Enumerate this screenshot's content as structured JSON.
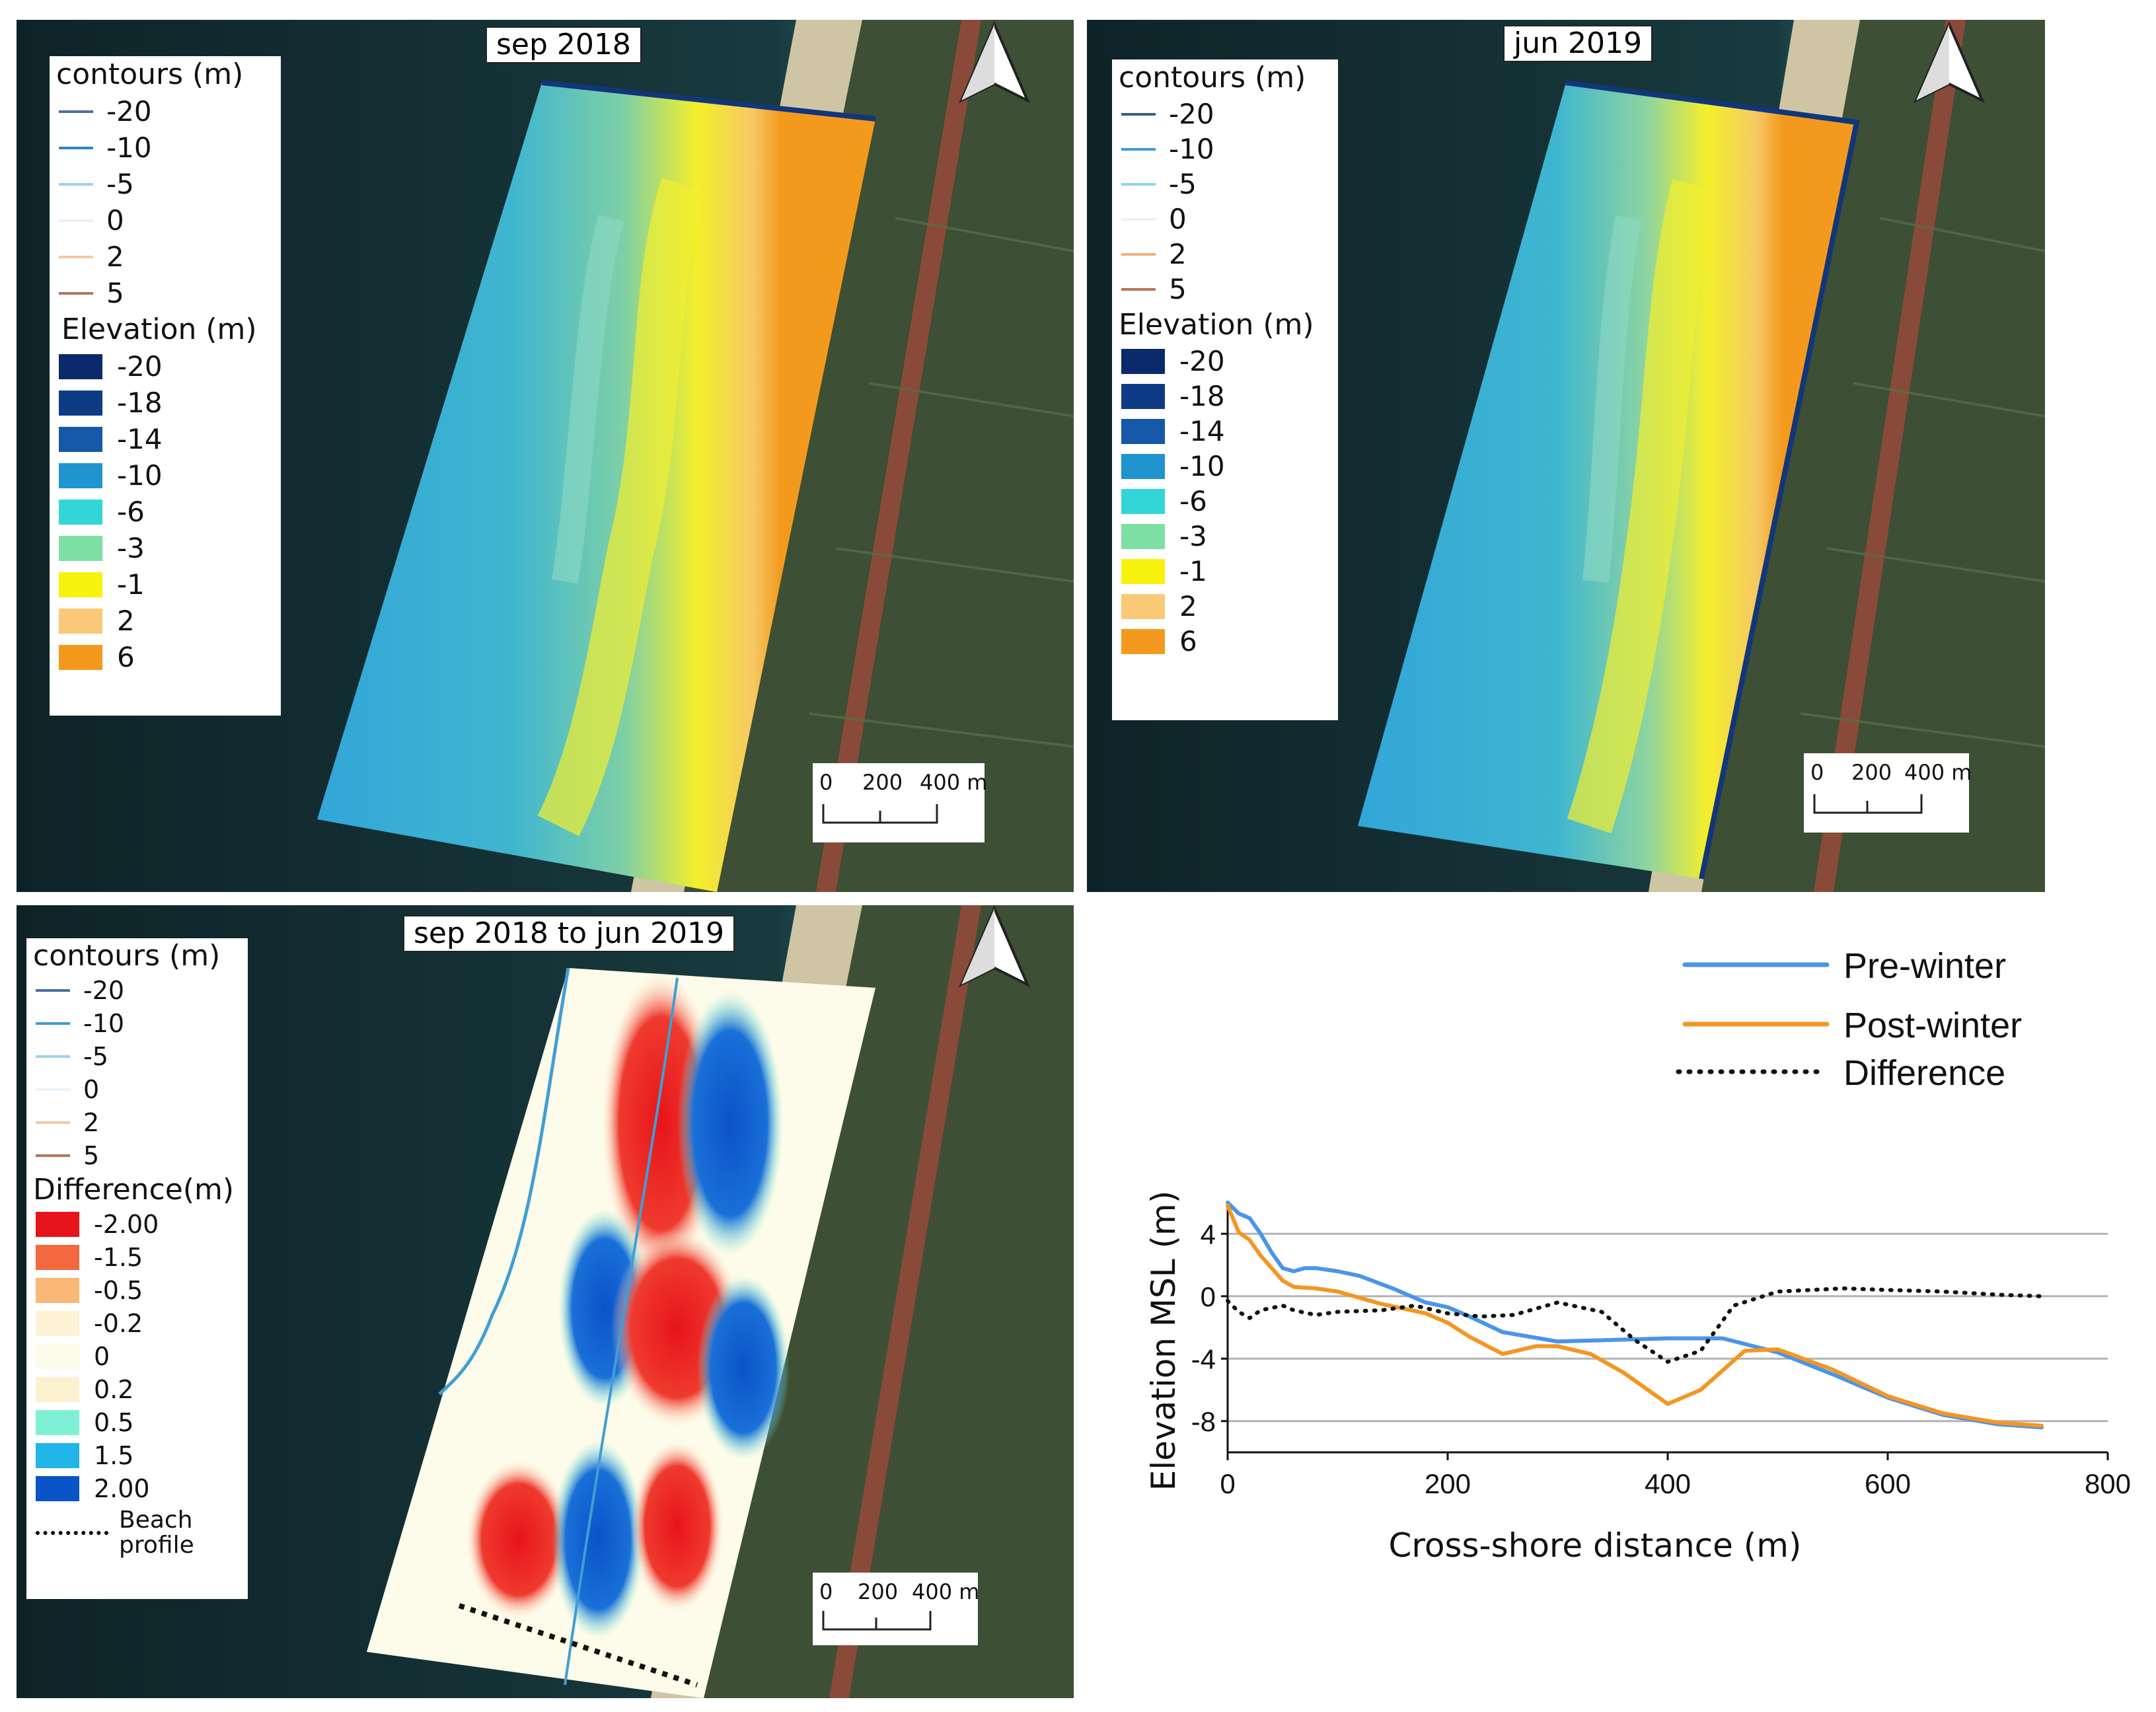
{
  "panels": {
    "sep2018": {
      "title": "sep 2018",
      "contours_title": "contours (m)",
      "contours": [
        {
          "label": "-20",
          "color": "#4a6fa5"
        },
        {
          "label": "-10",
          "color": "#2f86c6"
        },
        {
          "label": "-5",
          "color": "#9fd0ea"
        },
        {
          "label": "0",
          "color": "#e9f2f8"
        },
        {
          "label": "2",
          "color": "#f2c9a4"
        },
        {
          "label": "5",
          "color": "#b5745a"
        }
      ],
      "elevation_title": "Elevation (m)",
      "elevation": [
        {
          "label": "-20",
          "color": "#0b2a6b"
        },
        {
          "label": "-18",
          "color": "#0e3b86"
        },
        {
          "label": "-14",
          "color": "#1558a8"
        },
        {
          "label": "-10",
          "color": "#1f94cf"
        },
        {
          "label": "-6",
          "color": "#33d6d6"
        },
        {
          "label": "-3",
          "color": "#7de0a2"
        },
        {
          "label": "-1",
          "color": "#f7f20e"
        },
        {
          "label": "2",
          "color": "#f9c978"
        },
        {
          "label": "6",
          "color": "#f39a1e"
        }
      ],
      "scale": {
        "t0": "0",
        "t1": "200",
        "t2": "400 m"
      }
    },
    "jun2019": {
      "title": "jun 2019",
      "contours_title": "contours (m)",
      "contours": [
        {
          "label": "-20",
          "color": "#3b5f86"
        },
        {
          "label": "-10",
          "color": "#3f9fd2"
        },
        {
          "label": "-5",
          "color": "#8fd6e4"
        },
        {
          "label": "0",
          "color": "#e9f2f8"
        },
        {
          "label": "2",
          "color": "#f0b07a"
        },
        {
          "label": "5",
          "color": "#b5745a"
        }
      ],
      "elevation_title": "Elevation (m)",
      "elevation": [
        {
          "label": "-20",
          "color": "#0b2a6b"
        },
        {
          "label": "-18",
          "color": "#0e3b86"
        },
        {
          "label": "-14",
          "color": "#1558a8"
        },
        {
          "label": "-10",
          "color": "#1f94cf"
        },
        {
          "label": "-6",
          "color": "#33d6d6"
        },
        {
          "label": "-3",
          "color": "#7de0a2"
        },
        {
          "label": "-1",
          "color": "#f7f20e"
        },
        {
          "label": "2",
          "color": "#f9c978"
        },
        {
          "label": "6",
          "color": "#f39a1e"
        }
      ],
      "scale": {
        "t0": "0",
        "t1": "200",
        "t2": "400 m"
      }
    },
    "diff": {
      "title": "sep 2018 to jun 2019",
      "contours_title": "contours (m)",
      "contours": [
        {
          "label": "-20",
          "color": "#4a6fa5"
        },
        {
          "label": "-10",
          "color": "#3f9fd2"
        },
        {
          "label": "-5",
          "color": "#9fd0ea"
        },
        {
          "label": "0",
          "color": "#e9f2f8"
        },
        {
          "label": "2",
          "color": "#f2c9a4"
        },
        {
          "label": "5",
          "color": "#b5745a"
        }
      ],
      "difference_title": "Difference(m)",
      "difference": [
        {
          "label": "-2.00",
          "color": "#e8141b"
        },
        {
          "label": "-1.5",
          "color": "#f4683f"
        },
        {
          "label": "-0.5",
          "color": "#f9b877"
        },
        {
          "label": "-0.2",
          "color": "#fdf1d6"
        },
        {
          "label": "0",
          "color": "#fdfbe9"
        },
        {
          "label": "0.2",
          "color": "#fbf1d0"
        },
        {
          "label": "0.5",
          "color": "#7ff0d6"
        },
        {
          "label": "1.5",
          "color": "#21b5ea"
        },
        {
          "label": "2.00",
          "color": "#0b53c9"
        }
      ],
      "profile_label_1": "Beach",
      "profile_label_2": "profile",
      "scale": {
        "t0": "0",
        "t1": "200",
        "t2": "400 m"
      }
    }
  },
  "chart_data": {
    "type": "line",
    "xlabel": "Cross-shore distance (m)",
    "ylabel": "Elevation MSL (m)",
    "xlim": [
      0,
      800
    ],
    "ylim": [
      -10,
      6
    ],
    "xticks": [
      "0",
      "200",
      "400",
      "600",
      "800"
    ],
    "yticks": [
      "4",
      "0",
      "-4",
      "-8"
    ],
    "grid": "horizontal",
    "legend_position": "top",
    "series": [
      {
        "name": "Pre-winter",
        "color": "#4a95e8",
        "style": "solid",
        "x": [
          0,
          10,
          20,
          30,
          40,
          50,
          60,
          70,
          80,
          100,
          120,
          150,
          180,
          200,
          220,
          250,
          300,
          350,
          400,
          450,
          500,
          550,
          600,
          650,
          700,
          740
        ],
        "y": [
          6.0,
          5.3,
          5.0,
          4.0,
          2.8,
          1.8,
          1.6,
          1.8,
          1.8,
          1.6,
          1.3,
          0.5,
          -0.4,
          -0.7,
          -1.3,
          -2.3,
          -2.9,
          -2.8,
          -2.7,
          -2.7,
          -3.6,
          -5.0,
          -6.5,
          -7.6,
          -8.2,
          -8.4
        ]
      },
      {
        "name": "Post-winter",
        "color": "#f49623",
        "style": "solid",
        "x": [
          0,
          10,
          20,
          30,
          40,
          50,
          60,
          80,
          100,
          140,
          160,
          180,
          200,
          220,
          250,
          280,
          300,
          330,
          360,
          400,
          430,
          470,
          500,
          550,
          600,
          650,
          700,
          740
        ],
        "y": [
          5.8,
          4.1,
          3.6,
          2.6,
          1.8,
          1.0,
          0.6,
          0.5,
          0.3,
          -0.5,
          -0.8,
          -1.1,
          -1.7,
          -2.6,
          -3.7,
          -3.2,
          -3.2,
          -3.7,
          -4.9,
          -6.9,
          -6.0,
          -3.5,
          -3.4,
          -4.7,
          -6.4,
          -7.5,
          -8.1,
          -8.3
        ]
      },
      {
        "name": "Difference",
        "color": "#111111",
        "style": "dotted",
        "x": [
          0,
          10,
          20,
          30,
          50,
          60,
          80,
          100,
          140,
          170,
          200,
          230,
          260,
          300,
          340,
          370,
          400,
          430,
          460,
          500,
          560,
          600,
          650,
          700,
          740
        ],
        "y": [
          -0.3,
          -1.0,
          -1.4,
          -0.9,
          -0.6,
          -0.9,
          -1.2,
          -1.0,
          -0.9,
          -0.6,
          -1.1,
          -1.3,
          -1.2,
          -0.4,
          -1.0,
          -2.8,
          -4.2,
          -3.5,
          -0.6,
          0.3,
          0.5,
          0.4,
          0.3,
          0.1,
          0.0
        ]
      }
    ]
  }
}
